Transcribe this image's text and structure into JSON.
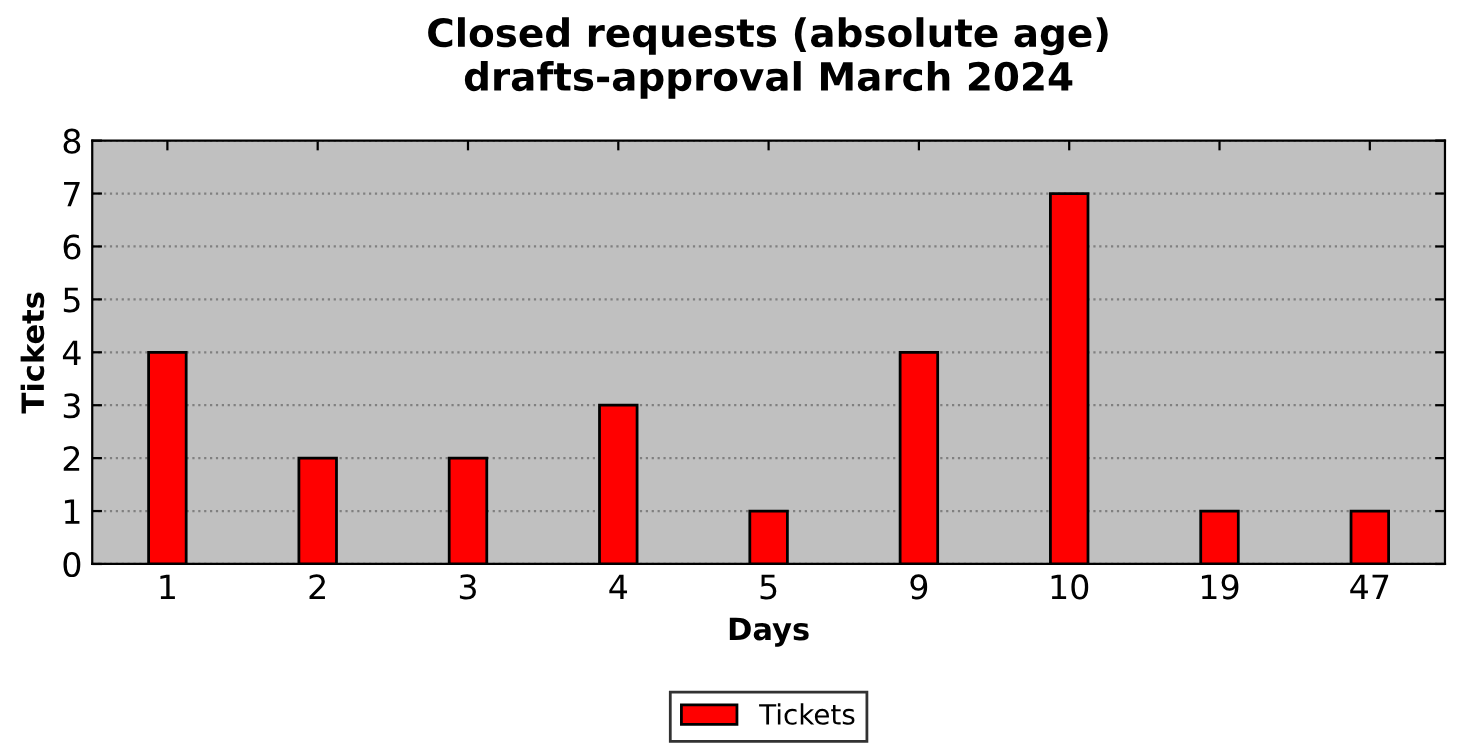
{
  "chart_data": {
    "type": "bar",
    "title": "Closed requests (absolute age)\ndrafts-approval March 2024",
    "xlabel": "Days",
    "ylabel": "Tickets",
    "categories": [
      "1",
      "2",
      "3",
      "4",
      "5",
      "9",
      "10",
      "19",
      "47"
    ],
    "series": [
      {
        "name": "Tickets",
        "color": "#ff0000",
        "values": [
          4,
          2,
          2,
          3,
          1,
          4,
          7,
          1,
          1
        ]
      }
    ],
    "ylim": [
      0,
      8
    ],
    "yticks": [
      0,
      1,
      2,
      3,
      4,
      5,
      6,
      7,
      8
    ],
    "grid": "y",
    "legend": "bottom"
  }
}
